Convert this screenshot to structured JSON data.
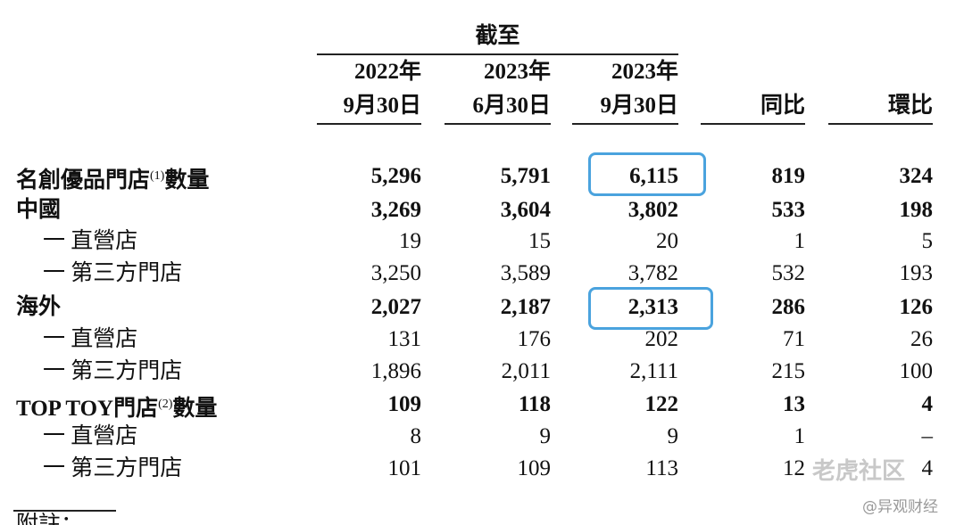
{
  "header": {
    "group": "截至",
    "columns": [
      [
        "2022年",
        "9月30日"
      ],
      [
        "2023年",
        "6月30日"
      ],
      [
        "2023年",
        "9月30日"
      ],
      [
        "同比"
      ],
      [
        "環比"
      ]
    ]
  },
  "table": {
    "rows": [
      {
        "label": "名創優品門店",
        "note": "(1)",
        "suffix": "數量",
        "bold": true,
        "cells": [
          "5,296",
          "5,791",
          "6,115",
          "819",
          "324"
        ]
      },
      {
        "label": "中國",
        "bold": true,
        "cells": [
          "3,269",
          "3,604",
          "3,802",
          "533",
          "198"
        ]
      },
      {
        "label": "一 直營店",
        "bold": false,
        "cells": [
          "19",
          "15",
          "20",
          "1",
          "5"
        ]
      },
      {
        "label": "一 第三方門店",
        "bold": false,
        "cells": [
          "3,250",
          "3,589",
          "3,782",
          "532",
          "193"
        ]
      },
      {
        "label": "海外",
        "bold": true,
        "cells": [
          "2,027",
          "2,187",
          "2,313",
          "286",
          "126"
        ]
      },
      {
        "label": "一 直營店",
        "bold": false,
        "cells": [
          "131",
          "176",
          "202",
          "71",
          "26"
        ]
      },
      {
        "label": "一 第三方門店",
        "bold": false,
        "cells": [
          "1,896",
          "2,011",
          "2,111",
          "215",
          "100"
        ]
      },
      {
        "label": "TOP TOY門店",
        "note": "(2)",
        "suffix": "數量",
        "bold": true,
        "cells": [
          "109",
          "118",
          "122",
          "13",
          "4"
        ]
      },
      {
        "label": "一 直營店",
        "bold": false,
        "cells": [
          "8",
          "9",
          "9",
          "1",
          "–"
        ]
      },
      {
        "label": "一 第三方門店",
        "bold": false,
        "cells": [
          "101",
          "109",
          "113",
          "12",
          "4"
        ]
      }
    ]
  },
  "footer": {
    "note": "附註："
  },
  "watermark": {
    "brand": "老虎社区",
    "author": "@异观财经"
  }
}
